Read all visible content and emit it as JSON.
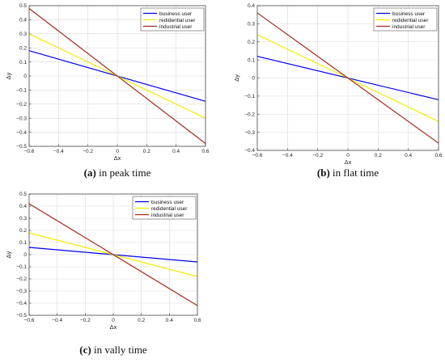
{
  "chart_data": [
    {
      "type": "line",
      "caption_label": "(a)",
      "caption_text": " in peak time",
      "xlabel": "Δx",
      "ylabel": "Δy",
      "xlim": [
        -0.6,
        0.6
      ],
      "ylim": [
        -0.5,
        0.5
      ],
      "xticks": [
        -0.6,
        -0.4,
        -0.2,
        0,
        0.2,
        0.4,
        0.6
      ],
      "yticks": [
        -0.5,
        -0.4,
        -0.3,
        -0.2,
        -0.1,
        0,
        0.1,
        0.2,
        0.3,
        0.4,
        0.5
      ],
      "xtick_labels": [
        "−0.6",
        "−0.4",
        "−0.2",
        "0",
        "0.2",
        "0.4",
        "0.6"
      ],
      "ytick_labels": [
        "−0.5",
        "−0.4",
        "−0.3",
        "−0.2",
        "−0.1",
        "0",
        "0.1",
        "0.2",
        "0.3",
        "0.4",
        "0.5"
      ],
      "grid": true,
      "legend": "top-right",
      "series": [
        {
          "name": "business user",
          "color": "#0000ee",
          "x": [
            -0.6,
            0.6
          ],
          "y": [
            0.18,
            -0.18
          ]
        },
        {
          "name": "redidential user",
          "color": "#eeee00",
          "x": [
            -0.6,
            0.6
          ],
          "y": [
            0.3,
            -0.3
          ]
        },
        {
          "name": "industrial user",
          "color": "#a52a1a",
          "x": [
            -0.6,
            0.6
          ],
          "y": [
            0.48,
            -0.48
          ]
        }
      ]
    },
    {
      "type": "line",
      "caption_label": "(b)",
      "caption_text": " in flat time",
      "xlabel": "Δx",
      "ylabel": "Δy",
      "xlim": [
        -0.6,
        0.6
      ],
      "ylim": [
        -0.4,
        0.4
      ],
      "xticks": [
        -0.6,
        -0.4,
        -0.2,
        0,
        0.2,
        0.4,
        0.6
      ],
      "yticks": [
        -0.4,
        -0.3,
        -0.2,
        -0.1,
        0,
        0.1,
        0.2,
        0.3,
        0.4
      ],
      "xtick_labels": [
        "−0.6",
        "−0.4",
        "−0.2",
        "0",
        "0.2",
        "0.4",
        "0.6"
      ],
      "ytick_labels": [
        "−0.4",
        "−0.3",
        "−0.2",
        "−0.1",
        "0",
        "0.1",
        "0.2",
        "0.3",
        "0.4"
      ],
      "grid": true,
      "legend": "top-right",
      "series": [
        {
          "name": "business user",
          "color": "#0000ee",
          "x": [
            -0.6,
            0.6
          ],
          "y": [
            0.12,
            -0.12
          ]
        },
        {
          "name": "redidential user",
          "color": "#eeee00",
          "x": [
            -0.6,
            0.6
          ],
          "y": [
            0.24,
            -0.24
          ]
        },
        {
          "name": "industrial user",
          "color": "#a52a1a",
          "x": [
            -0.6,
            0.6
          ],
          "y": [
            0.36,
            -0.36
          ]
        }
      ]
    },
    {
      "type": "line",
      "caption_label": "(c)",
      "caption_text": " in vally time",
      "xlabel": "Δx",
      "ylabel": "Δy",
      "xlim": [
        -0.6,
        0.6
      ],
      "ylim": [
        -0.5,
        0.5
      ],
      "xticks": [
        -0.6,
        -0.4,
        -0.2,
        0,
        0.2,
        0.4,
        0.6
      ],
      "yticks": [
        -0.5,
        -0.4,
        -0.3,
        -0.2,
        -0.1,
        0,
        0.1,
        0.2,
        0.3,
        0.4,
        0.5
      ],
      "xtick_labels": [
        "−0.6",
        "−0.4",
        "−0.2",
        "0",
        "0.2",
        "0.4",
        "0.6"
      ],
      "ytick_labels": [
        "−0.5",
        "−0.4",
        "−0.3",
        "−0.2",
        "−0.1",
        "0",
        "0.1",
        "0.2",
        "0.3",
        "0.4",
        "0.5"
      ],
      "grid": true,
      "legend": "top-right",
      "series": [
        {
          "name": "business user",
          "color": "#0000ee",
          "x": [
            -0.6,
            0.6
          ],
          "y": [
            0.06,
            -0.06
          ]
        },
        {
          "name": "redidential user",
          "color": "#eeee00",
          "x": [
            -0.6,
            0.6
          ],
          "y": [
            0.18,
            -0.18
          ]
        },
        {
          "name": "industrial user",
          "color": "#a52a1a",
          "x": [
            -0.6,
            0.6
          ],
          "y": [
            0.42,
            -0.42
          ]
        }
      ]
    }
  ]
}
